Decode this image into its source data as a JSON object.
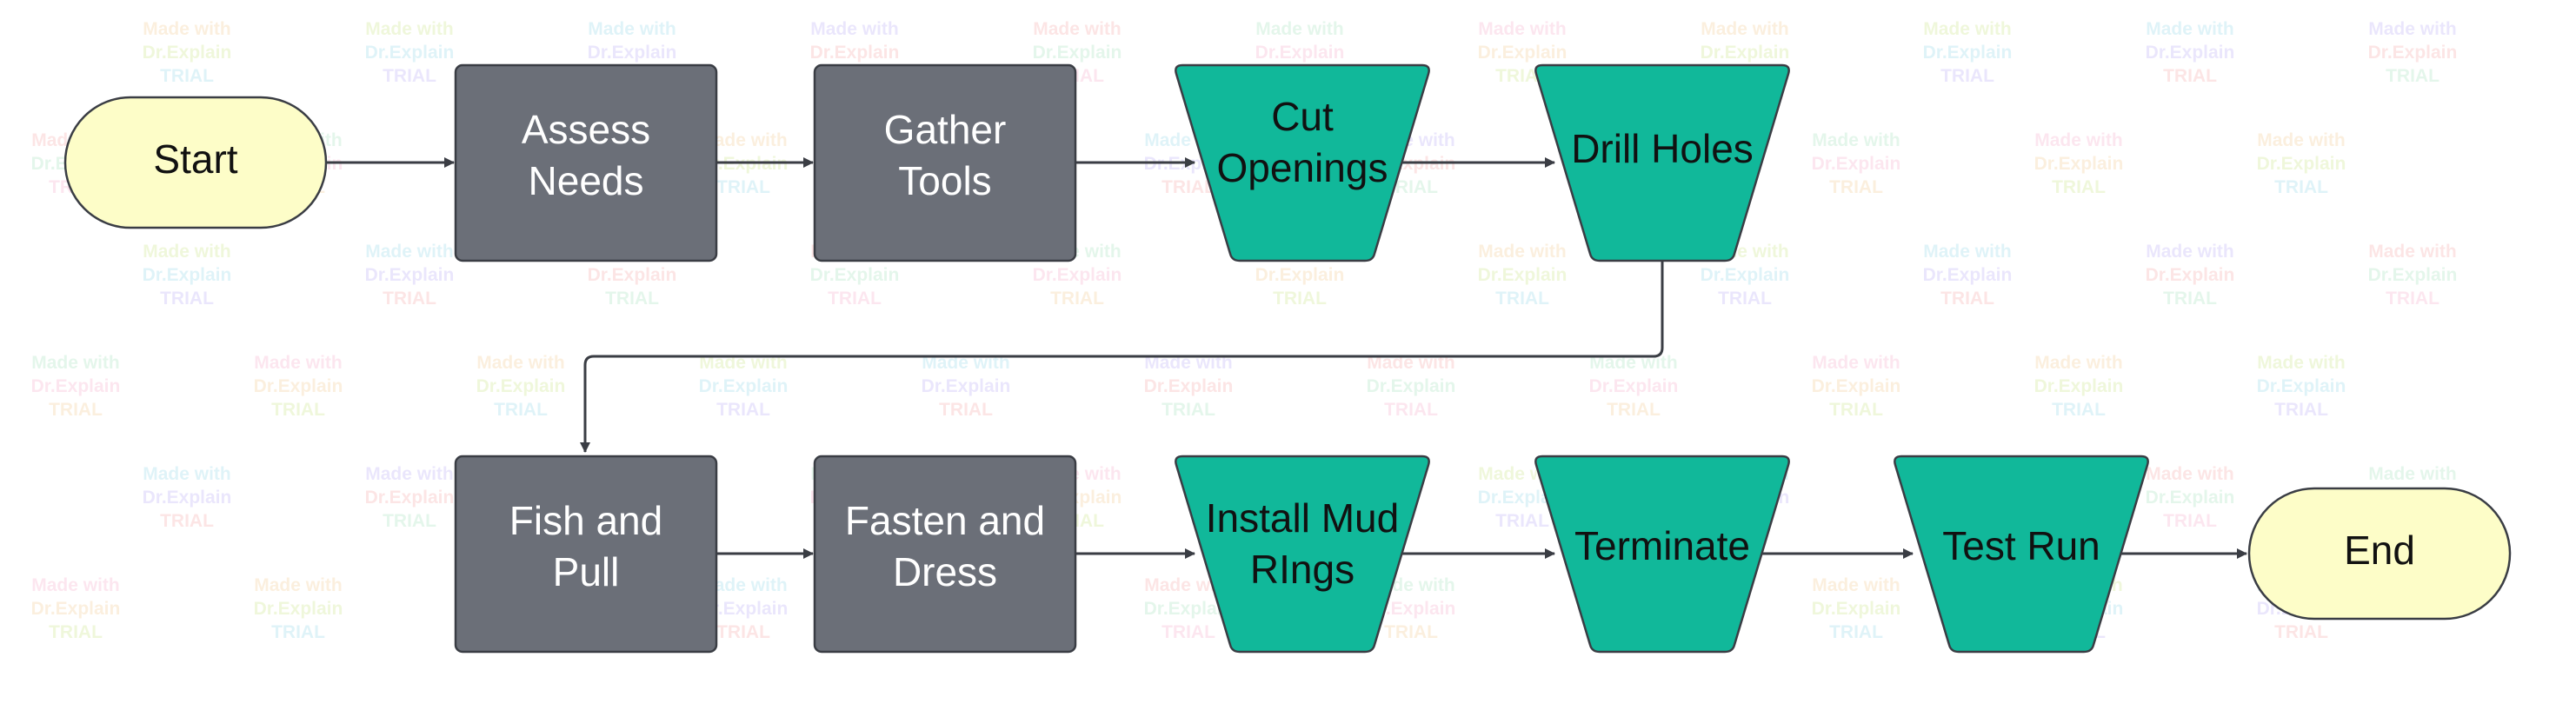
{
  "watermark": {
    "lines": [
      "Made with",
      "Dr.Explain",
      "TRIAL"
    ]
  },
  "colors": {
    "terminal_fill": "#fdfdc8",
    "process_fill": "#6b6f78",
    "trapezoid_fill": "#11b89a",
    "stroke": "#3a3d44",
    "arrow": "#3a3d44",
    "process_text": "#ffffff",
    "dark_text": "#111111"
  },
  "nodes": {
    "start": {
      "label": "Start"
    },
    "assess": {
      "line1": "Assess",
      "line2": "Needs"
    },
    "gather": {
      "line1": "Gather",
      "line2": "Tools"
    },
    "cut": {
      "line1": "Cut",
      "line2": "Openings"
    },
    "drill": {
      "label": "Drill Holes"
    },
    "fish": {
      "line1": "Fish and",
      "line2": "Pull"
    },
    "fasten": {
      "line1": "Fasten and",
      "line2": "Dress"
    },
    "install": {
      "line1": "Install Mud",
      "line2": "RIngs"
    },
    "terminate": {
      "label": "Terminate"
    },
    "test": {
      "label": "Test Run"
    },
    "end": {
      "label": "End"
    }
  }
}
